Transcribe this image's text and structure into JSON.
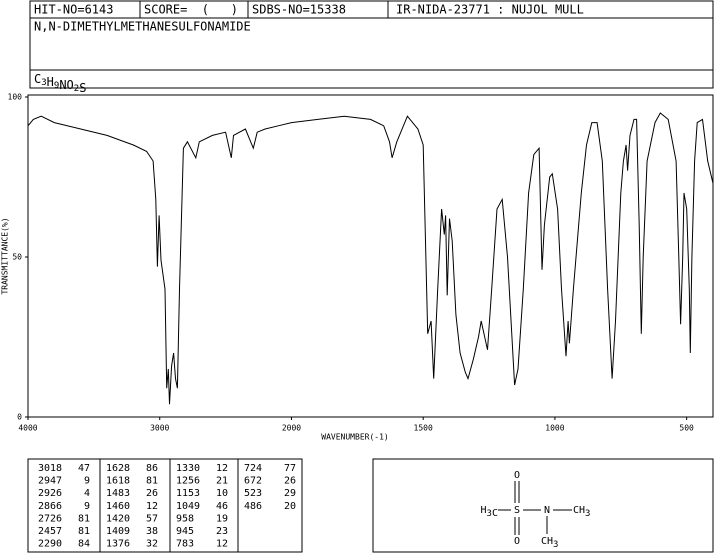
{
  "header": {
    "hit": "HIT-NO=6143",
    "score": "SCORE=  (   )",
    "sdbs": "SDBS-NO=15338",
    "method": "IR-NIDA-23771 : NUJOL MULL",
    "name": "N,N-DIMETHYLMETHANESULFONAMIDE",
    "formula": "C3H9NO2S"
  },
  "chart_data": {
    "type": "line",
    "xlabel": "WAVENUMBER(-1)",
    "ylabel": "TRANSMITTANCE(%)",
    "xlim": [
      4000,
      400
    ],
    "x_scale_break": 2000,
    "xticks": [
      4000,
      3000,
      2000,
      1500,
      1000,
      500
    ],
    "ylim": [
      0,
      100
    ],
    "yticks": [
      0,
      50,
      100
    ],
    "x": [
      4000,
      3960,
      3900,
      3800,
      3600,
      3400,
      3200,
      3100,
      3050,
      3030,
      3018,
      3005,
      2990,
      2960,
      2947,
      2935,
      2926,
      2910,
      2895,
      2880,
      2866,
      2850,
      2820,
      2790,
      2726,
      2700,
      2600,
      2500,
      2457,
      2440,
      2350,
      2290,
      2260,
      2200,
      2100,
      2000,
      1900,
      1800,
      1700,
      1650,
      1628,
      1618,
      1600,
      1560,
      1520,
      1500,
      1483,
      1470,
      1460,
      1445,
      1430,
      1420,
      1415,
      1409,
      1400,
      1390,
      1376,
      1360,
      1340,
      1330,
      1310,
      1290,
      1280,
      1256,
      1240,
      1220,
      1200,
      1180,
      1153,
      1140,
      1120,
      1100,
      1080,
      1060,
      1049,
      1040,
      1020,
      1010,
      990,
      975,
      958,
      950,
      945,
      930,
      900,
      880,
      860,
      840,
      820,
      800,
      783,
      770,
      750,
      740,
      730,
      724,
      715,
      700,
      690,
      680,
      672,
      665,
      650,
      620,
      600,
      570,
      540,
      530,
      523,
      515,
      510,
      500,
      490,
      486,
      480,
      470,
      460,
      440,
      420,
      400
    ],
    "series": [
      {
        "color": "#000000",
        "values": [
          91,
          93,
          94,
          92,
          90,
          88,
          85,
          83,
          80,
          68,
          47,
          63,
          49,
          40,
          9,
          15,
          4,
          16,
          20,
          12,
          9,
          40,
          84,
          86,
          81,
          86,
          88,
          89,
          81,
          88,
          90,
          84,
          89,
          90,
          91,
          92,
          93,
          94,
          93,
          91,
          86,
          81,
          86,
          94,
          90,
          85,
          26,
          30,
          12,
          40,
          65,
          57,
          63,
          38,
          62,
          55,
          32,
          20,
          14,
          12,
          18,
          25,
          30,
          21,
          40,
          65,
          68,
          50,
          10,
          15,
          40,
          70,
          82,
          84,
          46,
          60,
          75,
          76,
          65,
          40,
          19,
          30,
          23,
          40,
          70,
          85,
          92,
          92,
          80,
          40,
          12,
          30,
          70,
          80,
          85,
          77,
          88,
          93,
          93,
          60,
          26,
          50,
          80,
          92,
          95,
          93,
          80,
          50,
          29,
          50,
          70,
          65,
          40,
          20,
          50,
          80,
          92,
          93,
          80,
          73
        ]
      }
    ]
  },
  "peak_table": [
    [
      [
        3018,
        47
      ],
      [
        2947,
        9
      ],
      [
        2926,
        4
      ],
      [
        2866,
        9
      ],
      [
        2726,
        81
      ],
      [
        2457,
        81
      ],
      [
        2290,
        84
      ]
    ],
    [
      [
        1628,
        86
      ],
      [
        1618,
        81
      ],
      [
        1483,
        26
      ],
      [
        1460,
        12
      ],
      [
        1420,
        57
      ],
      [
        1409,
        38
      ],
      [
        1376,
        32
      ]
    ],
    [
      [
        1330,
        12
      ],
      [
        1256,
        21
      ],
      [
        1153,
        10
      ],
      [
        1049,
        46
      ],
      [
        958,
        19
      ],
      [
        945,
        23
      ],
      [
        783,
        12
      ]
    ],
    [
      [
        724,
        77
      ],
      [
        672,
        26
      ],
      [
        523,
        29
      ],
      [
        486,
        20
      ]
    ]
  ],
  "structure": {
    "atoms": [
      "H3C",
      "S",
      "N",
      "CH3",
      "CH3",
      "O",
      "O"
    ]
  }
}
